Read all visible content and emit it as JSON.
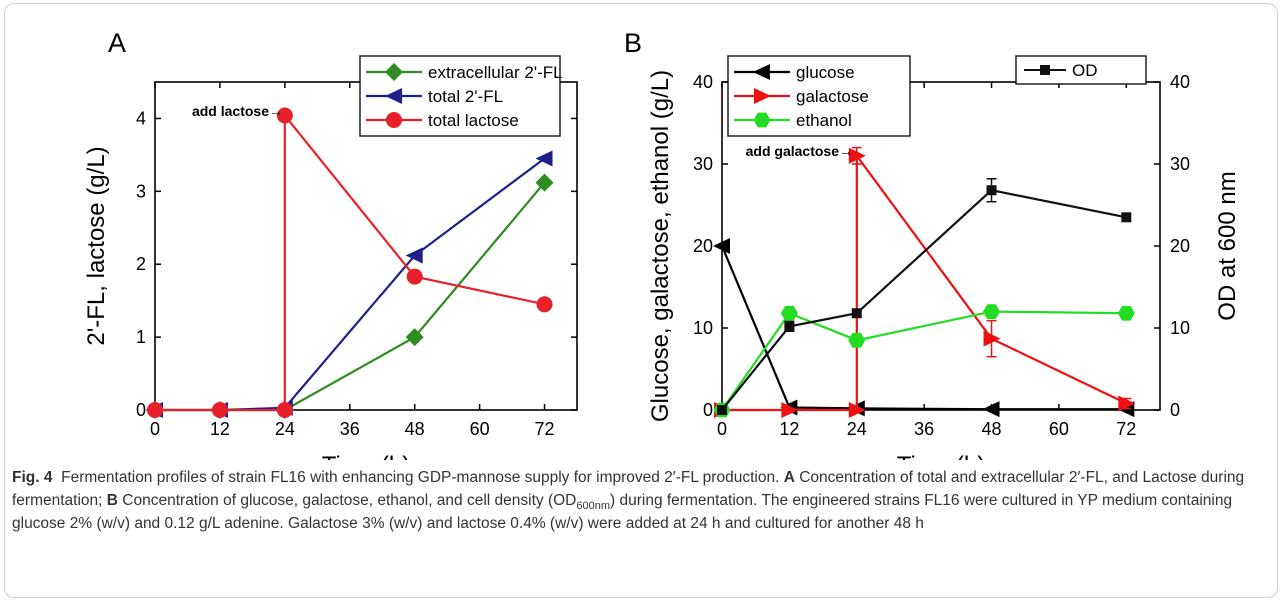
{
  "chart_data": [
    {
      "panel": "A",
      "type": "line",
      "xlabel": "Time (h)",
      "ylabel": "2'-FL, lactose (g/L)",
      "xlim": [
        0,
        78
      ],
      "ylim": [
        0,
        4.5
      ],
      "x_ticks": [
        "0",
        "12",
        "24",
        "36",
        "48",
        "60",
        "72"
      ],
      "y_ticks": [
        "0",
        "1",
        "2",
        "3",
        "4"
      ],
      "annotation": "add lactose→",
      "legend_position": "top-right",
      "series": [
        {
          "name": "extracellular 2'-FL",
          "color": "#2e8b1f",
          "marker": "diamond",
          "x": [
            0,
            12,
            24,
            48,
            72
          ],
          "y": [
            0,
            0,
            0,
            1.0,
            3.12
          ]
        },
        {
          "name": "total 2'-FL",
          "color": "#1f1f8c",
          "marker": "triangle-left",
          "x": [
            0,
            12,
            24,
            48,
            72
          ],
          "y": [
            0,
            0,
            0.03,
            2.12,
            3.45
          ]
        },
        {
          "name": "total lactose",
          "color": "#e8202a",
          "marker": "circle",
          "x": [
            0,
            12,
            24,
            24,
            48,
            72
          ],
          "y": [
            0,
            0,
            0,
            4.04,
            1.83,
            1.45
          ]
        }
      ]
    },
    {
      "panel": "B",
      "type": "line",
      "xlabel": "Time (h)",
      "ylabel": "Glucose, galactose, ethanol (g/L)",
      "ylabel_right": "OD at 600 nm",
      "xlim": [
        0,
        78
      ],
      "ylim": [
        0,
        40
      ],
      "ylim_right": [
        0,
        40
      ],
      "x_ticks": [
        "0",
        "12",
        "24",
        "36",
        "48",
        "60",
        "72"
      ],
      "y_ticks": [
        "0",
        "10",
        "20",
        "30",
        "40"
      ],
      "y_ticks_right": [
        "0",
        "10",
        "20",
        "30",
        "40"
      ],
      "annotation": "add galactose→",
      "legend_position": "top-left",
      "legend_right_position": "top-right",
      "series": [
        {
          "name": "glucose",
          "color": "#000000",
          "marker": "triangle-left",
          "x": [
            0,
            12,
            24,
            48,
            72
          ],
          "y": [
            20,
            0.3,
            0.2,
            0.1,
            0.1
          ]
        },
        {
          "name": "galactose",
          "color": "#ee1111",
          "marker": "triangle-right",
          "x": [
            0,
            12,
            24,
            24,
            48,
            72
          ],
          "y": [
            0,
            0,
            0,
            31,
            8.7,
            0.8
          ],
          "error": [
            0,
            0,
            0,
            1.0,
            2.2,
            0.6
          ]
        },
        {
          "name": "ethanol",
          "color": "#22dd22",
          "marker": "hexagon",
          "x": [
            0,
            12,
            24,
            48,
            72
          ],
          "y": [
            0,
            11.8,
            8.5,
            12,
            11.8
          ]
        },
        {
          "name": "OD",
          "color": "#111111",
          "marker": "square",
          "axis": "right",
          "x": [
            0,
            12,
            24,
            48,
            72
          ],
          "y": [
            0,
            10.2,
            11.8,
            26.8,
            23.5
          ],
          "error": [
            0,
            0.6,
            0,
            1.4,
            0
          ]
        }
      ]
    }
  ],
  "panel_labels": {
    "a": "A",
    "b": "B"
  },
  "caption": {
    "fig_label": "Fig. 4",
    "text1": "Fermentation profiles of strain FL16 with enhancing GDP-mannose supply for improved 2′-FL production.",
    "label_a": "A",
    "text2": "Concentration of total and extracellular 2′-FL, and Lactose during fermentation;",
    "label_b": "B",
    "text3": "Concentration of glucose, galactose, ethanol, and cell density (OD",
    "sub": "600nm",
    "text4": ") during fermentation. The engineered strains FL16 were cultured in YP medium containing glucose 2% (w/v) and 0.12 g/L adenine. Galactose 3% (w/v) and lactose 0.4% (w/v) were added at 24 h and cultured for another 48 h"
  }
}
